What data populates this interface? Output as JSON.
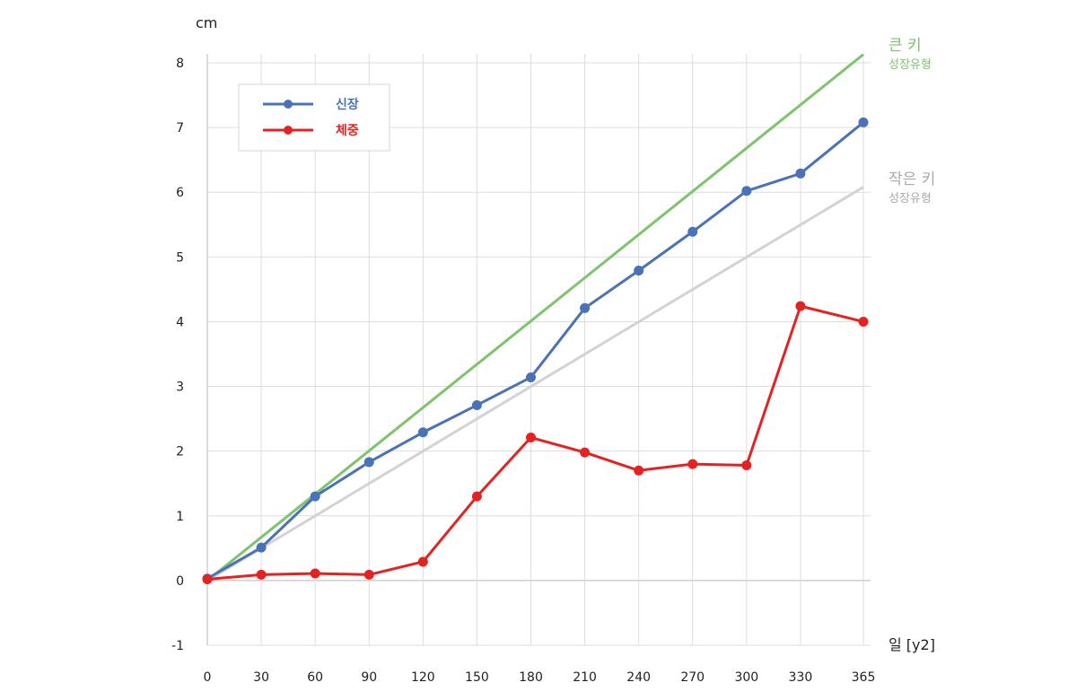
{
  "chart_data": {
    "type": "line",
    "ylabel": "cm",
    "xlabel": "일 [y2]",
    "x": [
      0,
      30,
      60,
      90,
      120,
      150,
      180,
      210,
      240,
      270,
      300,
      330,
      365
    ],
    "ylim": [
      -1,
      8
    ],
    "yticks": [
      -1,
      0,
      1,
      2,
      3,
      4,
      5,
      6,
      7,
      8
    ],
    "grid": true,
    "legend_position": "top-left",
    "series": [
      {
        "name": "신장",
        "color": "#4a72b8",
        "values": [
          0.03,
          0.51,
          1.3,
          1.83,
          2.29,
          2.71,
          3.14,
          4.21,
          4.79,
          5.39,
          6.02,
          6.29,
          7.08
        ]
      },
      {
        "name": "체중",
        "color": "#e52222",
        "values": [
          0.02,
          0.09,
          0.11,
          0.09,
          0.29,
          1.3,
          2.21,
          1.98,
          1.7,
          1.8,
          1.78,
          4.24,
          4.0
        ]
      }
    ],
    "reference_lines": [
      {
        "label": "큰 키",
        "sublabel": "성장유형",
        "color": "#7dc46c",
        "from": [
          0,
          0
        ],
        "to": [
          365,
          8.13
        ]
      },
      {
        "label": "작은 키",
        "sublabel": "성장유형",
        "color": "#d3d3d3",
        "label_color": "#aaaaaa",
        "from": [
          0,
          0
        ],
        "to": [
          365,
          6.08
        ]
      }
    ]
  }
}
